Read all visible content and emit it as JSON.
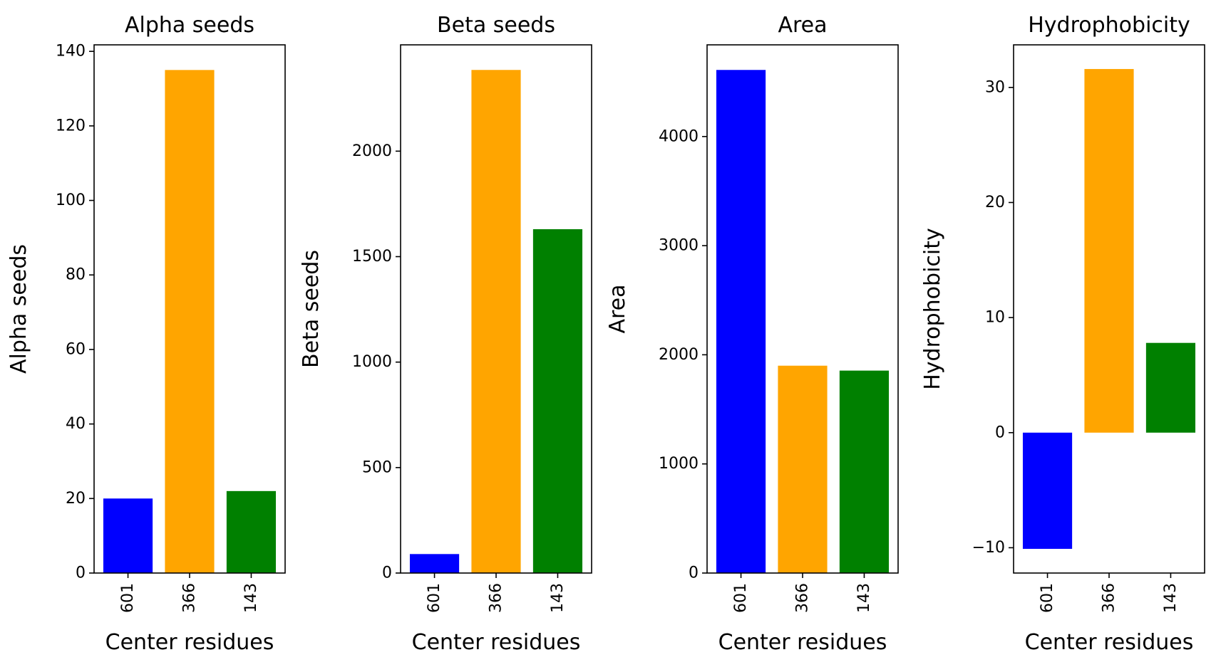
{
  "chart_data": [
    {
      "type": "bar",
      "title": "Alpha seeds",
      "xlabel": "Center residues",
      "ylabel": "Alpha seeds",
      "categories": [
        "601",
        "366",
        "143"
      ],
      "values": [
        20,
        135,
        22
      ],
      "colors": [
        "#0000ff",
        "#ffa500",
        "#008000"
      ],
      "ylim": [
        0,
        141.75
      ],
      "yticks": [
        0,
        20,
        40,
        60,
        80,
        100,
        120,
        140
      ],
      "ytick_labels": [
        "0",
        "20",
        "40",
        "60",
        "80",
        "100",
        "120",
        "140"
      ],
      "grid": false
    },
    {
      "type": "bar",
      "title": "Beta seeds",
      "xlabel": "Center residues",
      "ylabel": "Beta seeds",
      "categories": [
        "601",
        "366",
        "143"
      ],
      "values": [
        90,
        2385,
        1630
      ],
      "colors": [
        "#0000ff",
        "#ffa500",
        "#008000"
      ],
      "ylim": [
        0,
        2504
      ],
      "yticks": [
        0,
        500,
        1000,
        1500,
        2000
      ],
      "ytick_labels": [
        "0",
        "500",
        "1000",
        "1500",
        "2000"
      ],
      "grid": false
    },
    {
      "type": "bar",
      "title": "Area",
      "xlabel": "Center residues",
      "ylabel": "Area",
      "categories": [
        "601",
        "366",
        "143"
      ],
      "values": [
        4610,
        1900,
        1855
      ],
      "colors": [
        "#0000ff",
        "#ffa500",
        "#008000"
      ],
      "ylim": [
        0,
        4840
      ],
      "yticks": [
        0,
        1000,
        2000,
        3000,
        4000
      ],
      "ytick_labels": [
        "0",
        "1000",
        "2000",
        "3000",
        "4000"
      ],
      "grid": false
    },
    {
      "type": "bar",
      "title": "Hydrophobicity",
      "xlabel": "Center residues",
      "ylabel": "Hydrophobicity",
      "categories": [
        "601",
        "366",
        "143"
      ],
      "values": [
        -10.1,
        31.6,
        7.8
      ],
      "colors": [
        "#0000ff",
        "#ffa500",
        "#008000"
      ],
      "ylim": [
        -12.2,
        33.7
      ],
      "yticks": [
        -10,
        0,
        10,
        20,
        30
      ],
      "ytick_labels": [
        "−10",
        "0",
        "10",
        "20",
        "30"
      ],
      "grid": false
    }
  ]
}
